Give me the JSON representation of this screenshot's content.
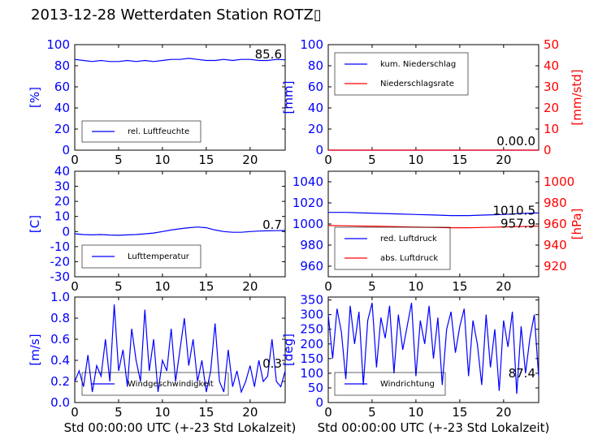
{
  "title": "2013-12-28 Wetterdaten Station ROTZ▯",
  "colors": {
    "blue": "#0000ff",
    "red": "#ff0000",
    "black": "#000000",
    "light_blue": "#8080ff"
  },
  "x_label_bottom": "Std 00:00:00 UTC (+-23 Std Lokalzeit)",
  "chart_data": [
    {
      "type": "line",
      "panel": "humidity",
      "ylabel": "[%]",
      "ylim": [
        0,
        100
      ],
      "yticks": [
        0,
        20,
        40,
        60,
        80,
        100
      ],
      "xlim": [
        0,
        24
      ],
      "xticks": [
        0,
        5,
        10,
        15,
        20
      ],
      "series": [
        {
          "name": "rel. Luftfeuchte",
          "color": "#0000ff",
          "x": [
            0,
            1,
            2,
            3,
            4,
            5,
            6,
            7,
            8,
            9,
            10,
            11,
            12,
            13,
            14,
            15,
            16,
            17,
            18,
            19,
            20,
            21,
            22,
            23,
            24
          ],
          "values": [
            86,
            85,
            84,
            85,
            84,
            84,
            85,
            84,
            85,
            84,
            85,
            86,
            86,
            87,
            86,
            85,
            85,
            86,
            85,
            86,
            86,
            85,
            85,
            86,
            85.6
          ]
        }
      ],
      "legend": "lower-left",
      "readout": "85.6"
    },
    {
      "type": "line",
      "panel": "precipitation",
      "ylabel": "[mm]",
      "ylabel_right": "[mm/std]",
      "ylim": [
        0,
        100
      ],
      "yticks": [
        0,
        20,
        40,
        60,
        80,
        100
      ],
      "ylim_right": [
        0,
        50
      ],
      "yticks_right": [
        0,
        10,
        20,
        30,
        40,
        50
      ],
      "xlim": [
        0,
        24
      ],
      "xticks": [
        0,
        5,
        10,
        15,
        20
      ],
      "series": [
        {
          "name": "kum. Niederschlag",
          "color": "#0000ff",
          "x": [
            0,
            24
          ],
          "values": [
            0,
            0
          ]
        },
        {
          "name": "Niederschlagsrate",
          "color": "#ff0000",
          "x": [
            0,
            24
          ],
          "values": [
            0,
            0
          ]
        }
      ],
      "legend": "upper-left",
      "readout": "0.00.0"
    },
    {
      "type": "line",
      "panel": "temperature",
      "ylabel": "[C]",
      "ylim": [
        -30,
        40
      ],
      "yticks": [
        -30,
        -20,
        -10,
        0,
        10,
        20,
        30,
        40
      ],
      "xlim": [
        0,
        24
      ],
      "xticks": [
        0,
        5,
        10,
        15,
        20
      ],
      "series": [
        {
          "name": "Lufttemperatur",
          "color": "#0000ff",
          "x": [
            0,
            1,
            2,
            3,
            4,
            5,
            6,
            7,
            8,
            9,
            10,
            11,
            12,
            13,
            14,
            15,
            16,
            17,
            18,
            19,
            20,
            21,
            22,
            23,
            24
          ],
          "values": [
            -1.5,
            -2,
            -2.2,
            -2,
            -2.3,
            -2.5,
            -2.2,
            -2,
            -1.5,
            -1,
            0,
            1,
            1.8,
            2.5,
            3,
            2.5,
            1,
            0,
            -0.5,
            -0.5,
            0,
            0.3,
            0.5,
            0.6,
            0.7
          ]
        }
      ],
      "legend": "lower-left",
      "readout": "0.7"
    },
    {
      "type": "line",
      "panel": "pressure",
      "ylabel_right": "[hPa]",
      "ylim": [
        950,
        1050
      ],
      "yticks": [
        960,
        980,
        1000,
        1020,
        1040
      ],
      "ylim_right": [
        910,
        1010
      ],
      "yticks_right": [
        920,
        940,
        960,
        980,
        1000
      ],
      "xlim": [
        0,
        24
      ],
      "xticks": [
        0,
        5,
        10,
        15,
        20
      ],
      "series": [
        {
          "name": "red. Luftdruck",
          "color": "#0000ff",
          "x": [
            0,
            2,
            4,
            6,
            8,
            10,
            12,
            14,
            16,
            18,
            20,
            22,
            24
          ],
          "values": [
            1011,
            1011,
            1010.5,
            1010,
            1009.5,
            1009,
            1008.5,
            1008,
            1008,
            1008.5,
            1009,
            1010,
            1010.5
          ]
        },
        {
          "name": "abs. Luftdruck",
          "color": "#ff0000",
          "x": [
            0,
            2,
            4,
            6,
            8,
            10,
            12,
            14,
            16,
            18,
            20,
            22,
            24
          ],
          "values": [
            958.5,
            958.3,
            958,
            957.8,
            957.5,
            957,
            956.8,
            956.5,
            956.5,
            956.8,
            957.2,
            957.6,
            957.9
          ]
        }
      ],
      "legend": "lower-left",
      "readout_blue": "1010.5",
      "readout_red": "957.9"
    },
    {
      "type": "line",
      "panel": "wind_speed",
      "ylabel": "[m/s]",
      "ylim": [
        0,
        1
      ],
      "yticks": [
        0.0,
        0.2,
        0.4,
        0.6,
        0.8,
        1.0
      ],
      "xlim": [
        0,
        24
      ],
      "xticks": [
        0,
        5,
        10,
        15,
        20
      ],
      "series": [
        {
          "name": "Windgeschwindigkeit",
          "color": "#0000ff",
          "x": [
            0,
            0.5,
            1,
            1.5,
            2,
            2.5,
            3,
            3.5,
            4,
            4.5,
            5,
            5.5,
            6,
            6.5,
            7,
            7.5,
            8,
            8.5,
            9,
            9.5,
            10,
            10.5,
            11,
            11.5,
            12,
            12.5,
            13,
            13.5,
            14,
            14.5,
            15,
            15.5,
            16,
            16.5,
            17,
            17.5,
            18,
            18.5,
            19,
            19.5,
            20,
            20.5,
            21,
            21.5,
            22,
            22.5,
            23,
            23.5,
            24
          ],
          "values": [
            0.2,
            0.3,
            0.15,
            0.45,
            0.1,
            0.35,
            0.25,
            0.6,
            0.2,
            0.93,
            0.3,
            0.5,
            0.15,
            0.7,
            0.4,
            0.2,
            0.88,
            0.3,
            0.6,
            0.1,
            0.4,
            0.3,
            0.7,
            0.2,
            0.5,
            0.8,
            0.35,
            0.6,
            0.2,
            0.4,
            0.1,
            0.3,
            0.75,
            0.2,
            0.1,
            0.5,
            0.15,
            0.3,
            0.1,
            0.2,
            0.35,
            0.15,
            0.4,
            0.2,
            0.25,
            0.6,
            0.2,
            0.15,
            0.3
          ]
        }
      ],
      "legend": "lower-center",
      "readout": "0.3"
    },
    {
      "type": "line",
      "panel": "wind_direction",
      "ylabel": "[deg]",
      "ylim": [
        0,
        360
      ],
      "yticks": [
        0,
        50,
        100,
        150,
        200,
        250,
        300,
        350
      ],
      "xlim": [
        0,
        24
      ],
      "xticks": [
        0,
        5,
        10,
        15,
        20
      ],
      "series": [
        {
          "name": "Windrichtung",
          "color": "#0000ff",
          "x": [
            0,
            0.5,
            1,
            1.5,
            2,
            2.5,
            3,
            3.5,
            4,
            4.5,
            5,
            5.5,
            6,
            6.5,
            7,
            7.5,
            8,
            8.5,
            9,
            9.5,
            10,
            10.5,
            11,
            11.5,
            12,
            12.5,
            13,
            13.5,
            14,
            14.5,
            15,
            15.5,
            16,
            16.5,
            17,
            17.5,
            18,
            18.5,
            19,
            19.5,
            20,
            20.5,
            21,
            21.5,
            22,
            22.5,
            23,
            23.5,
            24
          ],
          "values": [
            300,
            150,
            320,
            240,
            80,
            330,
            200,
            310,
            60,
            280,
            340,
            120,
            290,
            220,
            330,
            100,
            300,
            180,
            260,
            340,
            90,
            280,
            200,
            330,
            150,
            290,
            60,
            250,
            310,
            170,
            260,
            320,
            90,
            280,
            200,
            60,
            300,
            120,
            250,
            40,
            280,
            190,
            310,
            30,
            260,
            100,
            220,
            300,
            87.4
          ]
        }
      ],
      "legend": "lower-left",
      "readout": "87.4"
    }
  ]
}
